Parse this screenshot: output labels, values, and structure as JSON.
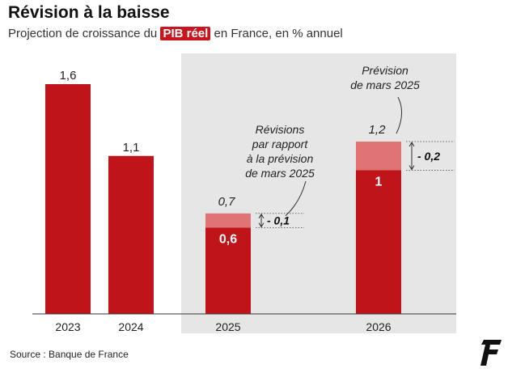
{
  "header": {
    "title": "Révision à la baisse",
    "subtitle_before": "Projection de croissance du ",
    "subtitle_highlight": "PIB réel",
    "subtitle_after": " en France, en % annuel"
  },
  "source": "Source : Banque de France",
  "colors": {
    "bar": "#c0141b",
    "bar_previous": "#e07474",
    "forecast_background": "#e6e6e6",
    "highlight": "#c8161d"
  },
  "chart_data": {
    "type": "bar",
    "categories": [
      "2023",
      "2024",
      "2025",
      "2026"
    ],
    "values": [
      1.6,
      1.1,
      0.6,
      1
    ],
    "value_labels": [
      "1,6",
      "1,1",
      "0,6",
      "1"
    ],
    "previous_forecast": [
      null,
      null,
      0.7,
      1.2
    ],
    "previous_forecast_labels": [
      "",
      "",
      "0,7",
      "1,2"
    ],
    "revision_labels": [
      "",
      "",
      "- 0,1",
      "- 0,2"
    ],
    "forecast_shaded_categories": [
      "2025",
      "2026"
    ],
    "annotations": {
      "revision": "Révisions\npar rapport\nà la prévision\nde mars 2025",
      "previous_forecast": "Prévision\nde mars 2025"
    },
    "title": "",
    "xlabel": "",
    "ylabel": "",
    "ylim": [
      0,
      1.6
    ]
  }
}
